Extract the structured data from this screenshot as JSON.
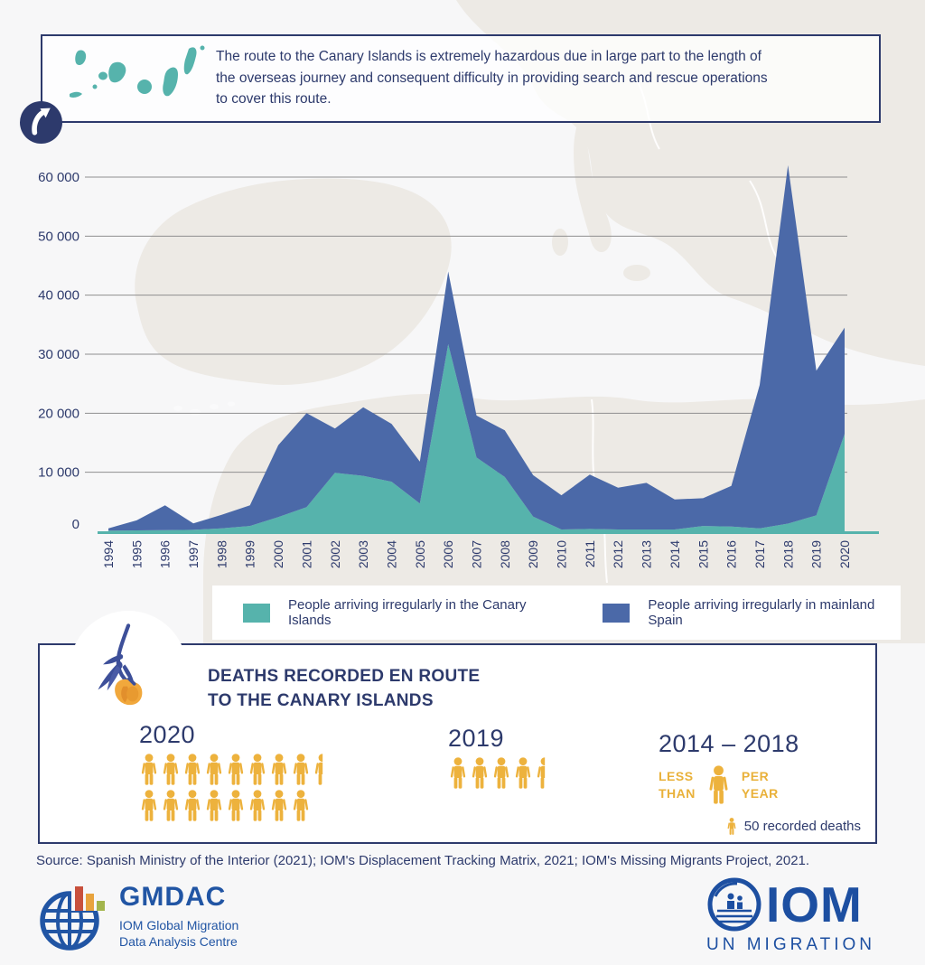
{
  "header": {
    "note": "The route to the Canary Islands is extremely hazardous due in large part to the length of\nthe overseas journey and consequent difficulty in providing search and rescue operations\nto cover this route.",
    "map_icon": "canary-islands-map",
    "badge_icon": "curved-up-right-arrow"
  },
  "chart_data": {
    "type": "area",
    "stacked": true,
    "x": [
      1994,
      1995,
      1996,
      1997,
      1998,
      1999,
      2000,
      2001,
      2002,
      2003,
      2004,
      2005,
      2006,
      2007,
      2008,
      2009,
      2010,
      2011,
      2012,
      2013,
      2014,
      2015,
      2016,
      2017,
      2018,
      2019,
      2020
    ],
    "series": [
      {
        "name": "People arriving irregularly in the Canary Islands",
        "color": "#56b3ac",
        "values": [
          100,
          150,
          200,
          250,
          500,
          900,
          2400,
          4100,
          9900,
          9400,
          8400,
          4700,
          31700,
          12500,
          9200,
          2500,
          300,
          400,
          300,
          300,
          300,
          900,
          800,
          500,
          1300,
          2700,
          16500
        ]
      },
      {
        "name": "People arriving irregularly in mainland Spain",
        "color": "#4b69a8",
        "values": [
          400,
          1700,
          4200,
          1100,
          2300,
          3500,
          12200,
          15900,
          7500,
          11600,
          9800,
          7100,
          12300,
          7100,
          7900,
          7000,
          5800,
          9200,
          7100,
          7900,
          5100,
          4700,
          6900,
          24300,
          60700,
          24500,
          18000
        ]
      }
    ],
    "ylim": [
      0,
      65000
    ],
    "yticks": [
      0,
      10000,
      20000,
      30000,
      40000,
      50000,
      60000
    ],
    "ytick_labels": [
      "0",
      "10 000",
      "20 000",
      "30 000",
      "40 000",
      "50 000",
      "60 000"
    ],
    "xlabel": "",
    "ylabel": "",
    "grid": true,
    "legend_position": "bottom",
    "axis_color": "#56b3ac"
  },
  "deaths": {
    "title_line1": "DEATHS RECORDED EN ROUTE",
    "title_line2": "TO THE CANARY ISLANDS",
    "icon_unit_value": 50,
    "key_label": "50 recorded deaths",
    "groups": [
      {
        "year": "2020",
        "icons_rows": [
          8.5,
          8
        ]
      },
      {
        "year": "2019",
        "icons_rows": [
          4.5
        ]
      },
      {
        "year": "2014 – 2018",
        "qualifier_line1": "LESS",
        "qualifier_line2": "THAN",
        "unit_line1": "PER",
        "unit_line2": "YEAR"
      }
    ]
  },
  "source": "Source: Spanish Ministry of the Interior (2021); IOM's Displacement Tracking Matrix, 2021; IOM's Missing Migrants Project, 2021.",
  "footer": {
    "gmdac": {
      "acronym": "GMDAC",
      "line1": "IOM Global Migration",
      "line2": "Data Analysis Centre"
    },
    "iom": {
      "wordmark": "IOM",
      "tagline": "UN MIGRATION"
    }
  },
  "colors": {
    "teal": "#56b3ac",
    "blue": "#4b69a8",
    "navy": "#2d3a6c",
    "gold": "#edb23d",
    "logo_blue": "#2155a4",
    "map_land": "#edeae5"
  }
}
